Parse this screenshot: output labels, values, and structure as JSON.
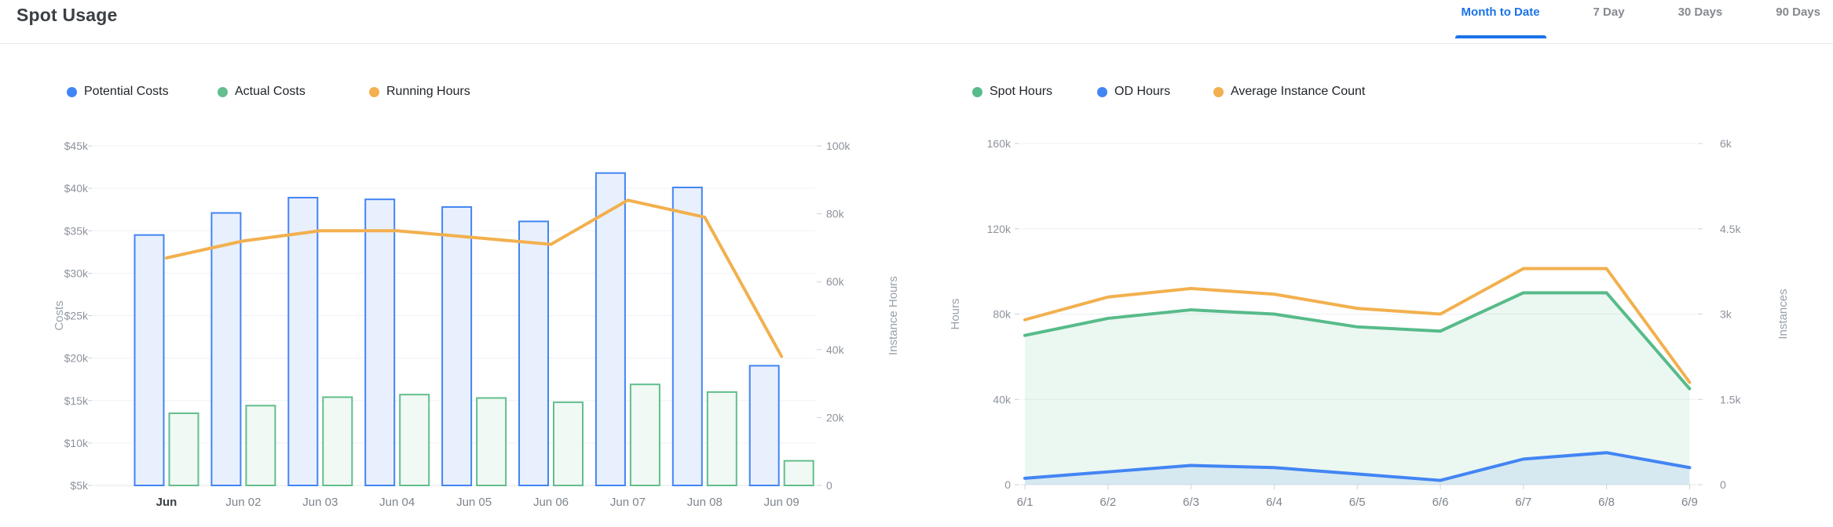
{
  "header": {
    "title": "Spot Usage",
    "tabs": [
      {
        "label": "Month to Date",
        "active": true
      },
      {
        "label": "7 Day",
        "active": false
      },
      {
        "label": "30 Days",
        "active": false
      },
      {
        "label": "90 Days",
        "active": false
      }
    ]
  },
  "colors": {
    "accent_blue": "#4285F4",
    "accent_green": "#57BB8A",
    "accent_orange": "#F2B04E",
    "bar_blue_fill": "#E9F0FD",
    "bar_green_fill": "#F0F9F4",
    "area_green_fill": "rgba(87,187,138,0.12)",
    "area_blue_fill": "rgba(66,133,244,0.12)",
    "grid_line": "#EEF0F4",
    "axis_line": "#E2E5E9",
    "axis_tick": "#CDD1D7",
    "active_tab": "#1A73E8",
    "divider": "#E9EBEE"
  },
  "chart_data": [
    {
      "type": "bar",
      "name": "spot-usage-costs-chart",
      "title": "",
      "categories": [
        "Jun",
        "Jun 02",
        "Jun 03",
        "Jun 04",
        "Jun 05",
        "Jun 06",
        "Jun 07",
        "Jun 08",
        "Jun 09"
      ],
      "first_label_bold": true,
      "legend_position": "top",
      "grid": true,
      "ylabel_left": "Costs",
      "ylabel_right": "Instance Hours",
      "yaxis_left": {
        "min": 5000,
        "max": 45000,
        "step": 5000,
        "currency": true
      },
      "yaxis_right": {
        "min": 0,
        "max": 100000,
        "step": 20000,
        "currency": false
      },
      "series": [
        {
          "name": "Potential Costs",
          "type": "bar",
          "axis": "left",
          "color": "#4285F4",
          "fill": "#E9F0FD",
          "values": [
            34500,
            37100,
            38900,
            38700,
            37800,
            36100,
            41800,
            40100,
            19100
          ]
        },
        {
          "name": "Actual Costs",
          "type": "bar",
          "axis": "left",
          "color": "#63BE8D",
          "fill": "#F0F9F4",
          "values": [
            13500,
            14400,
            15400,
            15700,
            15300,
            14800,
            16900,
            16000,
            7900
          ]
        },
        {
          "name": "Running Hours",
          "type": "line",
          "axis": "right",
          "color": "#F2B04E",
          "values": [
            67000,
            72000,
            75000,
            75000,
            73000,
            71000,
            84000,
            79000,
            38000
          ]
        }
      ]
    },
    {
      "type": "area",
      "name": "spot-usage-hours-chart",
      "title": "",
      "categories": [
        "6/1",
        "6/2",
        "6/3",
        "6/4",
        "6/5",
        "6/6",
        "6/7",
        "6/8",
        "6/9"
      ],
      "first_label_bold": false,
      "legend_position": "top",
      "grid": true,
      "ylabel_left": "Hours",
      "ylabel_right": "Instances",
      "yaxis_left": {
        "min": 0,
        "max": 160000,
        "step": 40000,
        "currency": false
      },
      "yaxis_right": {
        "min": 0,
        "max": 6000,
        "step": 1500,
        "currency": false
      },
      "series": [
        {
          "name": "Spot Hours",
          "type": "area",
          "axis": "left",
          "color": "#57BB8A",
          "fill": "rgba(87,187,138,0.12)",
          "values": [
            70000,
            78000,
            82000,
            80000,
            74000,
            72000,
            90000,
            90000,
            45000
          ]
        },
        {
          "name": "OD Hours",
          "type": "area",
          "axis": "left",
          "color": "#4285F4",
          "fill": "rgba(66,133,244,0.12)",
          "values": [
            3000,
            6000,
            9000,
            8000,
            5000,
            2000,
            12000,
            15000,
            8000
          ]
        },
        {
          "name": "Average Instance Count",
          "type": "line",
          "axis": "right",
          "color": "#F2B04E",
          "values": [
            2900,
            3300,
            3450,
            3350,
            3100,
            3000,
            3800,
            3800,
            1800
          ]
        }
      ]
    }
  ]
}
